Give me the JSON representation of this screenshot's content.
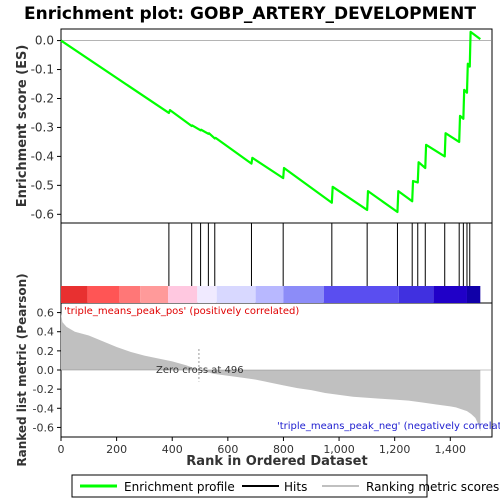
{
  "chart_data": {
    "type": "line",
    "title": "Enrichment plot: GOBP_ARTERY_DEVELOPMENT",
    "top_panel": {
      "ylabel": "Enrichment score (ES)",
      "ylim": [
        -0.63,
        0.04
      ],
      "yticks": [
        0.0,
        -0.1,
        -0.2,
        -0.3,
        -0.4,
        -0.5,
        -0.6
      ],
      "ytick_labels": [
        "0.0",
        "-0.1",
        "-0.2",
        "-0.3",
        "-0.4",
        "-0.5",
        "-0.6"
      ],
      "series": [
        {
          "name": "Enrichment profile",
          "color": "#00ff00",
          "x": [
            0,
            388,
            392,
            470,
            472,
            502,
            504,
            530,
            532,
            553,
            556,
            685,
            688,
            799,
            802,
            974,
            977,
            1101,
            1104,
            1210,
            1213,
            1263,
            1266,
            1283,
            1286,
            1310,
            1313,
            1380,
            1383,
            1432,
            1435,
            1447,
            1450,
            1460,
            1463,
            1470,
            1473,
            1508
          ],
          "y": [
            0.0,
            -0.25,
            -0.24,
            -0.295,
            -0.293,
            -0.31,
            -0.308,
            -0.322,
            -0.32,
            -0.338,
            -0.336,
            -0.425,
            -0.405,
            -0.475,
            -0.44,
            -0.56,
            -0.505,
            -0.585,
            -0.52,
            -0.592,
            -0.52,
            -0.555,
            -0.485,
            -0.49,
            -0.42,
            -0.44,
            -0.36,
            -0.4,
            -0.32,
            -0.35,
            -0.26,
            -0.27,
            -0.17,
            -0.18,
            -0.08,
            -0.09,
            0.03,
            0.005
          ]
        }
      ]
    },
    "hits": {
      "name": "Hits",
      "x": [
        388,
        470,
        502,
        530,
        553,
        685,
        799,
        974,
        1101,
        1210,
        1263,
        1283,
        1310,
        1380,
        1432,
        1447,
        1460,
        1470
      ]
    },
    "bottom_panel": {
      "xlabel": "Rank in Ordered Dataset",
      "ylabel": "Ranked list metric (Pearson)",
      "xlim": [
        0,
        1550
      ],
      "ylim": [
        -0.7,
        0.7
      ],
      "xticks": [
        0,
        200,
        400,
        600,
        800,
        1000,
        1200,
        1400
      ],
      "xtick_labels": [
        "0",
        "200",
        "400",
        "600",
        "800",
        "1,000",
        "1,200",
        "1,400"
      ],
      "yticks": [
        0.6,
        0.4,
        0.2,
        0.0,
        -0.2,
        -0.4,
        -0.6
      ],
      "ytick_labels": [
        "0.6",
        "0.4",
        "0.2",
        "0.0",
        "-0.2",
        "-0.4",
        "-0.6"
      ],
      "metric_curve": {
        "name": "Ranking metric scores",
        "x": [
          0,
          5,
          20,
          50,
          100,
          150,
          200,
          250,
          300,
          350,
          400,
          450,
          496,
          550,
          600,
          650,
          700,
          750,
          800,
          850,
          900,
          950,
          1000,
          1050,
          1100,
          1150,
          1200,
          1250,
          1300,
          1350,
          1400,
          1420,
          1440,
          1460,
          1475,
          1490,
          1500,
          1508
        ],
        "y": [
          0.6,
          0.5,
          0.45,
          0.4,
          0.36,
          0.3,
          0.24,
          0.19,
          0.15,
          0.12,
          0.09,
          0.05,
          0.0,
          -0.04,
          -0.06,
          -0.08,
          -0.1,
          -0.13,
          -0.16,
          -0.19,
          -0.21,
          -0.24,
          -0.26,
          -0.28,
          -0.29,
          -0.3,
          -0.31,
          -0.32,
          -0.34,
          -0.36,
          -0.38,
          -0.39,
          -0.41,
          -0.43,
          -0.46,
          -0.5,
          -0.56,
          -0.64
        ]
      },
      "zero_cross_label": "Zero cross at 496",
      "zero_cross_x": 496,
      "pos_label": "'triple_means_peak_pos' (positively correlated)",
      "neg_label": "'triple_means_peak_neg' (negatively correlated)"
    },
    "color_bar": {
      "segments": [
        {
          "from": 0,
          "to": 95,
          "color": "#e83030"
        },
        {
          "from": 95,
          "to": 210,
          "color": "#ff5555"
        },
        {
          "from": 210,
          "to": 285,
          "color": "#ff7777"
        },
        {
          "from": 285,
          "to": 385,
          "color": "#ff9a9a"
        },
        {
          "from": 385,
          "to": 490,
          "color": "#ffc8e0"
        },
        {
          "from": 490,
          "to": 560,
          "color": "#f0eaff"
        },
        {
          "from": 560,
          "to": 700,
          "color": "#d8d8ff"
        },
        {
          "from": 700,
          "to": 800,
          "color": "#b8b8ff"
        },
        {
          "from": 800,
          "to": 945,
          "color": "#8c8cf8"
        },
        {
          "from": 945,
          "to": 1215,
          "color": "#5a4ef0"
        },
        {
          "from": 1215,
          "to": 1340,
          "color": "#4030e0"
        },
        {
          "from": 1340,
          "to": 1460,
          "color": "#2000c8"
        },
        {
          "from": 1460,
          "to": 1508,
          "color": "#1000a8"
        }
      ]
    },
    "legend": {
      "placement": "bottom",
      "entries": [
        {
          "label": "Enrichment profile",
          "color": "#00ff00"
        },
        {
          "label": "Hits",
          "color": "#000000"
        },
        {
          "label": "Ranking metric scores",
          "color": "#c0c0c0"
        }
      ]
    }
  }
}
